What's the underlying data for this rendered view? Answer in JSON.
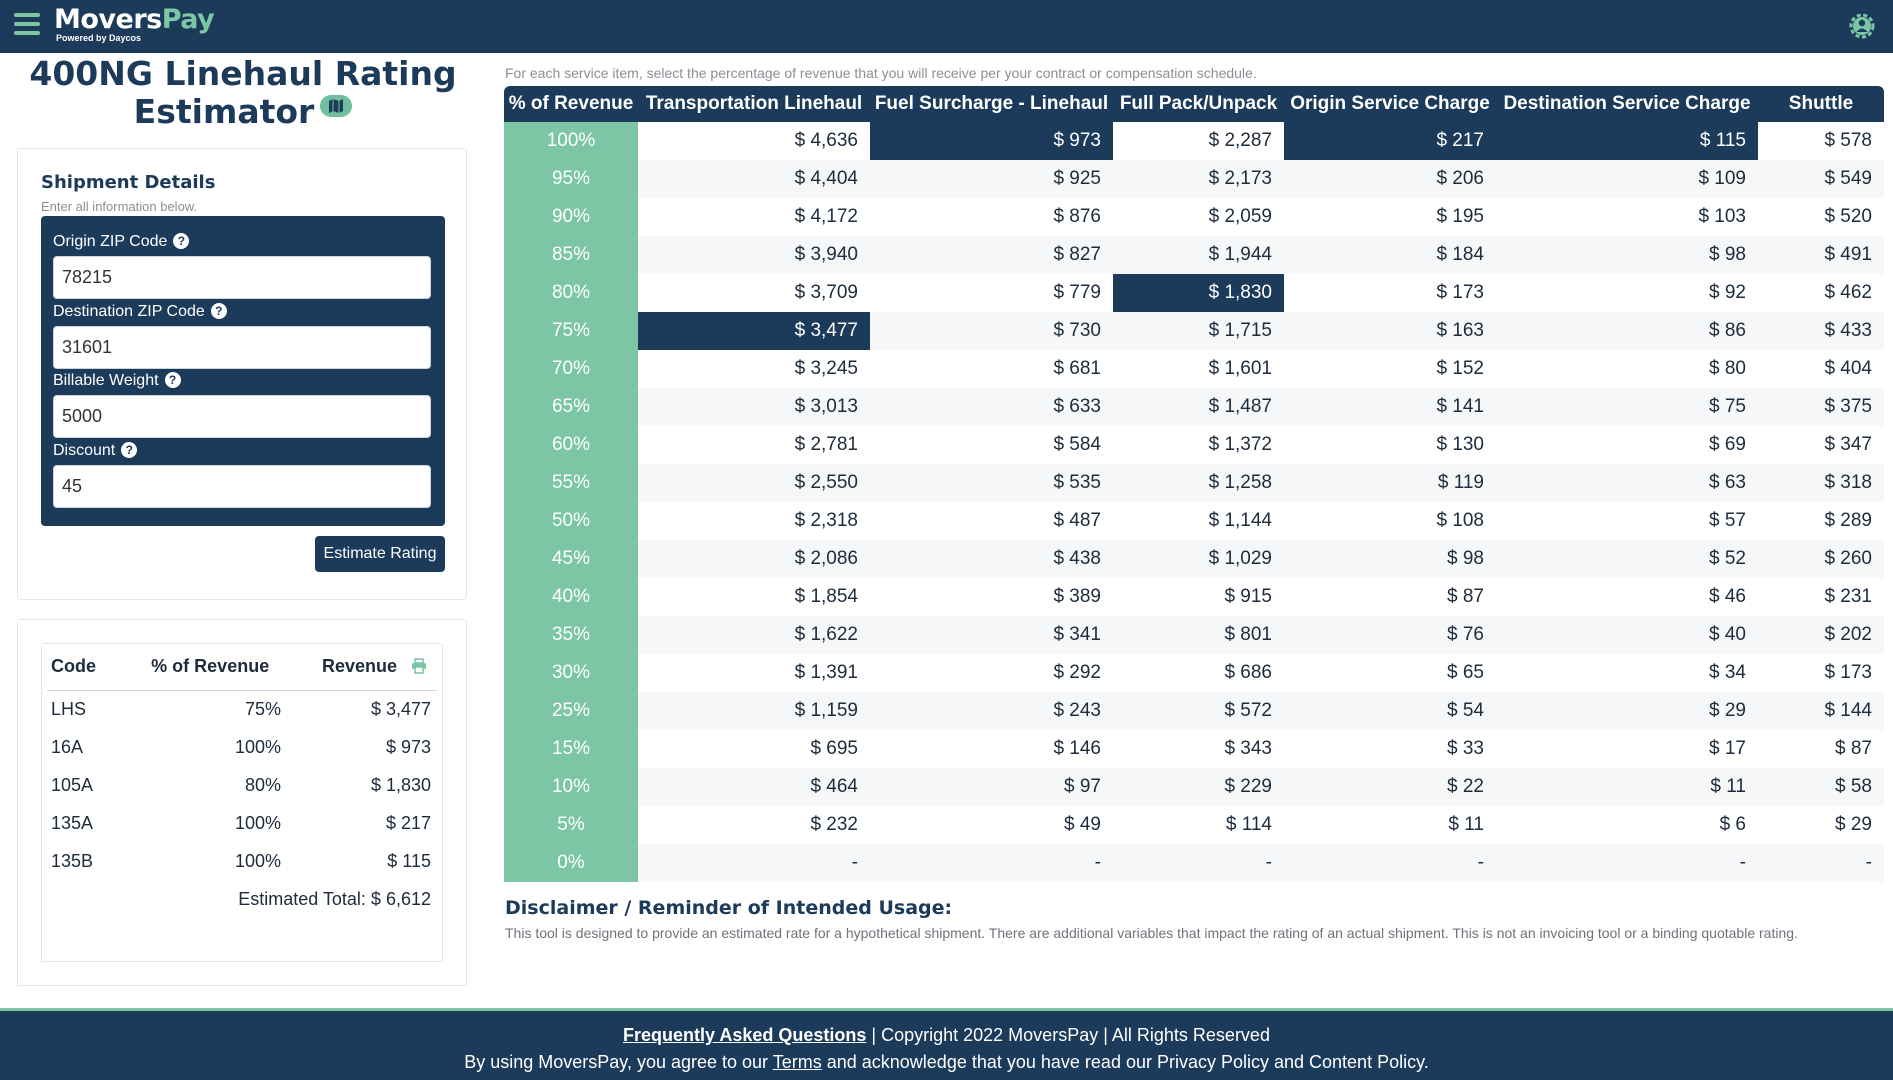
{
  "header": {
    "logo_movers": "Movers",
    "logo_pay": "Pay",
    "logo_sub": "Powered by Daycos",
    "menu_icon": "hamburger-icon",
    "user_icon": "user-gear-icon"
  },
  "title": {
    "line1": "400NG Linehaul Rating",
    "line2": "Estimator",
    "badge_icon": "map-icon"
  },
  "shipment": {
    "title": "Shipment Details",
    "subtitle": "Enter all information below.",
    "fields": [
      {
        "label": "Origin ZIP Code",
        "value": "78215"
      },
      {
        "label": "Destination ZIP Code",
        "value": "31601"
      },
      {
        "label": "Billable Weight",
        "value": "5000"
      },
      {
        "label": "Discount",
        "value": "45"
      }
    ],
    "help_glyph": "?",
    "button": "Estimate Rating"
  },
  "results": {
    "headers": [
      "Code",
      "% of Revenue",
      "Revenue"
    ],
    "print_icon": "printer-icon",
    "rows": [
      {
        "code": "LHS",
        "pct": "75%",
        "revenue": "$ 3,477"
      },
      {
        "code": "16A",
        "pct": "100%",
        "revenue": "$ 973"
      },
      {
        "code": "105A",
        "pct": "80%",
        "revenue": "$ 1,830"
      },
      {
        "code": "135A",
        "pct": "100%",
        "revenue": "$ 217"
      },
      {
        "code": "135B",
        "pct": "100%",
        "revenue": "$ 115"
      }
    ],
    "total": "Estimated Total: $ 6,612"
  },
  "rating_table": {
    "note": "For each service item, select the percentage of revenue that you will receive per your contract or compensation schedule.",
    "headers": [
      "% of Revenue",
      "Transportation Linehaul",
      "Fuel Surcharge - Linehaul",
      "Full Pack/Unpack",
      "Origin Service Charge",
      "Destination Service Charge",
      "Shuttle"
    ],
    "rows": [
      {
        "pct": "100%",
        "cells": [
          "$ 4,636",
          "$ 973",
          "$ 2,287",
          "$ 217",
          "$ 115",
          "$ 578"
        ]
      },
      {
        "pct": "95%",
        "cells": [
          "$ 4,404",
          "$ 925",
          "$ 2,173",
          "$ 206",
          "$ 109",
          "$ 549"
        ]
      },
      {
        "pct": "90%",
        "cells": [
          "$ 4,172",
          "$ 876",
          "$ 2,059",
          "$ 195",
          "$ 103",
          "$ 520"
        ]
      },
      {
        "pct": "85%",
        "cells": [
          "$ 3,940",
          "$ 827",
          "$ 1,944",
          "$ 184",
          "$ 98",
          "$ 491"
        ]
      },
      {
        "pct": "80%",
        "cells": [
          "$ 3,709",
          "$ 779",
          "$ 1,830",
          "$ 173",
          "$ 92",
          "$ 462"
        ]
      },
      {
        "pct": "75%",
        "cells": [
          "$ 3,477",
          "$ 730",
          "$ 1,715",
          "$ 163",
          "$ 86",
          "$ 433"
        ]
      },
      {
        "pct": "70%",
        "cells": [
          "$ 3,245",
          "$ 681",
          "$ 1,601",
          "$ 152",
          "$ 80",
          "$ 404"
        ]
      },
      {
        "pct": "65%",
        "cells": [
          "$ 3,013",
          "$ 633",
          "$ 1,487",
          "$ 141",
          "$ 75",
          "$ 375"
        ]
      },
      {
        "pct": "60%",
        "cells": [
          "$ 2,781",
          "$ 584",
          "$ 1,372",
          "$ 130",
          "$ 69",
          "$ 347"
        ]
      },
      {
        "pct": "55%",
        "cells": [
          "$ 2,550",
          "$ 535",
          "$ 1,258",
          "$ 119",
          "$ 63",
          "$ 318"
        ]
      },
      {
        "pct": "50%",
        "cells": [
          "$ 2,318",
          "$ 487",
          "$ 1,144",
          "$ 108",
          "$ 57",
          "$ 289"
        ]
      },
      {
        "pct": "45%",
        "cells": [
          "$ 2,086",
          "$ 438",
          "$ 1,029",
          "$ 98",
          "$ 52",
          "$ 260"
        ]
      },
      {
        "pct": "40%",
        "cells": [
          "$ 1,854",
          "$ 389",
          "$ 915",
          "$ 87",
          "$ 46",
          "$ 231"
        ]
      },
      {
        "pct": "35%",
        "cells": [
          "$ 1,622",
          "$ 341",
          "$ 801",
          "$ 76",
          "$ 40",
          "$ 202"
        ]
      },
      {
        "pct": "30%",
        "cells": [
          "$ 1,391",
          "$ 292",
          "$ 686",
          "$ 65",
          "$ 34",
          "$ 173"
        ]
      },
      {
        "pct": "25%",
        "cells": [
          "$ 1,159",
          "$ 243",
          "$ 572",
          "$ 54",
          "$ 29",
          "$ 144"
        ]
      },
      {
        "pct": "15%",
        "cells": [
          "$ 695",
          "$ 146",
          "$ 343",
          "$ 33",
          "$ 17",
          "$ 87"
        ]
      },
      {
        "pct": "10%",
        "cells": [
          "$ 464",
          "$ 97",
          "$ 229",
          "$ 22",
          "$ 11",
          "$ 58"
        ]
      },
      {
        "pct": "5%",
        "cells": [
          "$ 232",
          "$ 49",
          "$ 114",
          "$ 11",
          "$ 6",
          "$ 29"
        ]
      },
      {
        "pct": "0%",
        "cells": [
          "-",
          "-",
          "-",
          "-",
          "-",
          "-"
        ]
      }
    ],
    "selected": [
      {
        "row": 0,
        "col": 1
      },
      {
        "row": 0,
        "col": 3
      },
      {
        "row": 0,
        "col": 4
      },
      {
        "row": 4,
        "col": 2
      },
      {
        "row": 5,
        "col": 0
      }
    ],
    "colors": {
      "pct": "#7cc6a6",
      "selected": "#1c3a5a"
    }
  },
  "disclaimer": {
    "title": "Disclaimer / Reminder of Intended Usage:",
    "body": "This tool is designed to provide an estimated rate for a hypothetical shipment. There are additional variables that impact the rating of an actual shipment. This is not an invoicing tool or a binding quotable rating."
  },
  "footer": {
    "faq": "Frequently Asked Questions",
    "copyright": " | Copyright 2022 MoversPay | All Rights Reserved",
    "l2_pre": "By using MoversPay, you agree to our ",
    "terms": "Terms",
    "l2_post": " and acknowledge that you have read our Privacy Policy and Content Policy."
  },
  "colors": {
    "navy": "#1c3a5a",
    "green": "#7cc6a6"
  }
}
